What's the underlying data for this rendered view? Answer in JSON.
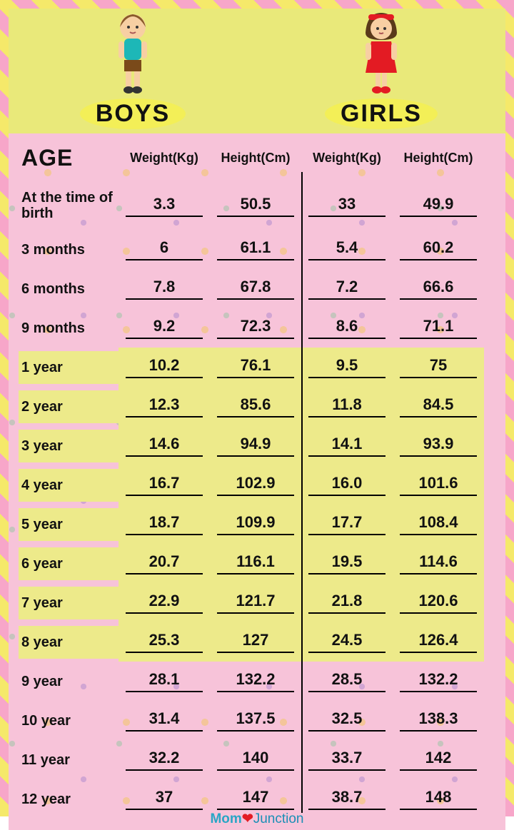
{
  "type": "table",
  "title_boys": "BOYS",
  "title_girls": "GIRLS",
  "headers": {
    "age": "AGE",
    "weight": "Weight(Kg)",
    "height": "Height(Cm)"
  },
  "colors": {
    "header_bg": "#e9e97a",
    "body_bg": "#f7c3d9",
    "stripe_a": "#f5e96a",
    "stripe_b": "#f7a6c9",
    "label_pill": "#f3ef57",
    "logo_color": "#2aa6c5",
    "text": "#111111",
    "row_alt_bg": "#edea8a"
  },
  "fonts": {
    "title_size": 34,
    "header_size": 18,
    "age_head_size": 32,
    "cell_size": 22,
    "age_size": 20
  },
  "yellow_row_indices": [
    4,
    5,
    6,
    7,
    8,
    9,
    10,
    11
  ],
  "rows": [
    {
      "age": "At the time of birth",
      "bw": "3.3",
      "bh": "50.5",
      "gw": "33",
      "gh": "49.9"
    },
    {
      "age": "3 months",
      "bw": "6",
      "bh": "61.1",
      "gw": "5.4",
      "gh": "60.2"
    },
    {
      "age": "6 months",
      "bw": "7.8",
      "bh": "67.8",
      "gw": "7.2",
      "gh": "66.6"
    },
    {
      "age": "9 months",
      "bw": "9.2",
      "bh": "72.3",
      "gw": "8.6",
      "gh": "71.1"
    },
    {
      "age": "1 year",
      "bw": "10.2",
      "bh": "76.1",
      "gw": "9.5",
      "gh": "75"
    },
    {
      "age": "2 year",
      "bw": "12.3",
      "bh": "85.6",
      "gw": "11.8",
      "gh": "84.5"
    },
    {
      "age": "3 year",
      "bw": "14.6",
      "bh": "94.9",
      "gw": "14.1",
      "gh": "93.9"
    },
    {
      "age": "4 year",
      "bw": "16.7",
      "bh": "102.9",
      "gw": "16.0",
      "gh": "101.6"
    },
    {
      "age": "5 year",
      "bw": "18.7",
      "bh": "109.9",
      "gw": "17.7",
      "gh": "108.4"
    },
    {
      "age": "6 year",
      "bw": "20.7",
      "bh": "116.1",
      "gw": "19.5",
      "gh": "114.6"
    },
    {
      "age": "7 year",
      "bw": "22.9",
      "bh": "121.7",
      "gw": "21.8",
      "gh": "120.6"
    },
    {
      "age": "8 year",
      "bw": "25.3",
      "bh": "127",
      "gw": "24.5",
      "gh": "126.4"
    },
    {
      "age": "9 year",
      "bw": "28.1",
      "bh": "132.2",
      "gw": "28.5",
      "gh": "132.2"
    },
    {
      "age": "10 year",
      "bw": "31.4",
      "bh": "137.5",
      "gw": "32.5",
      "gh": "138.3"
    },
    {
      "age": "11 year",
      "bw": "32.2",
      "bh": "140",
      "gw": "33.7",
      "gh": "142"
    },
    {
      "age": "12 year",
      "bw": "37",
      "bh": "147",
      "gw": "38.7",
      "gh": "148"
    }
  ],
  "logo": {
    "part1": "Mom",
    "part2": "Junction"
  }
}
